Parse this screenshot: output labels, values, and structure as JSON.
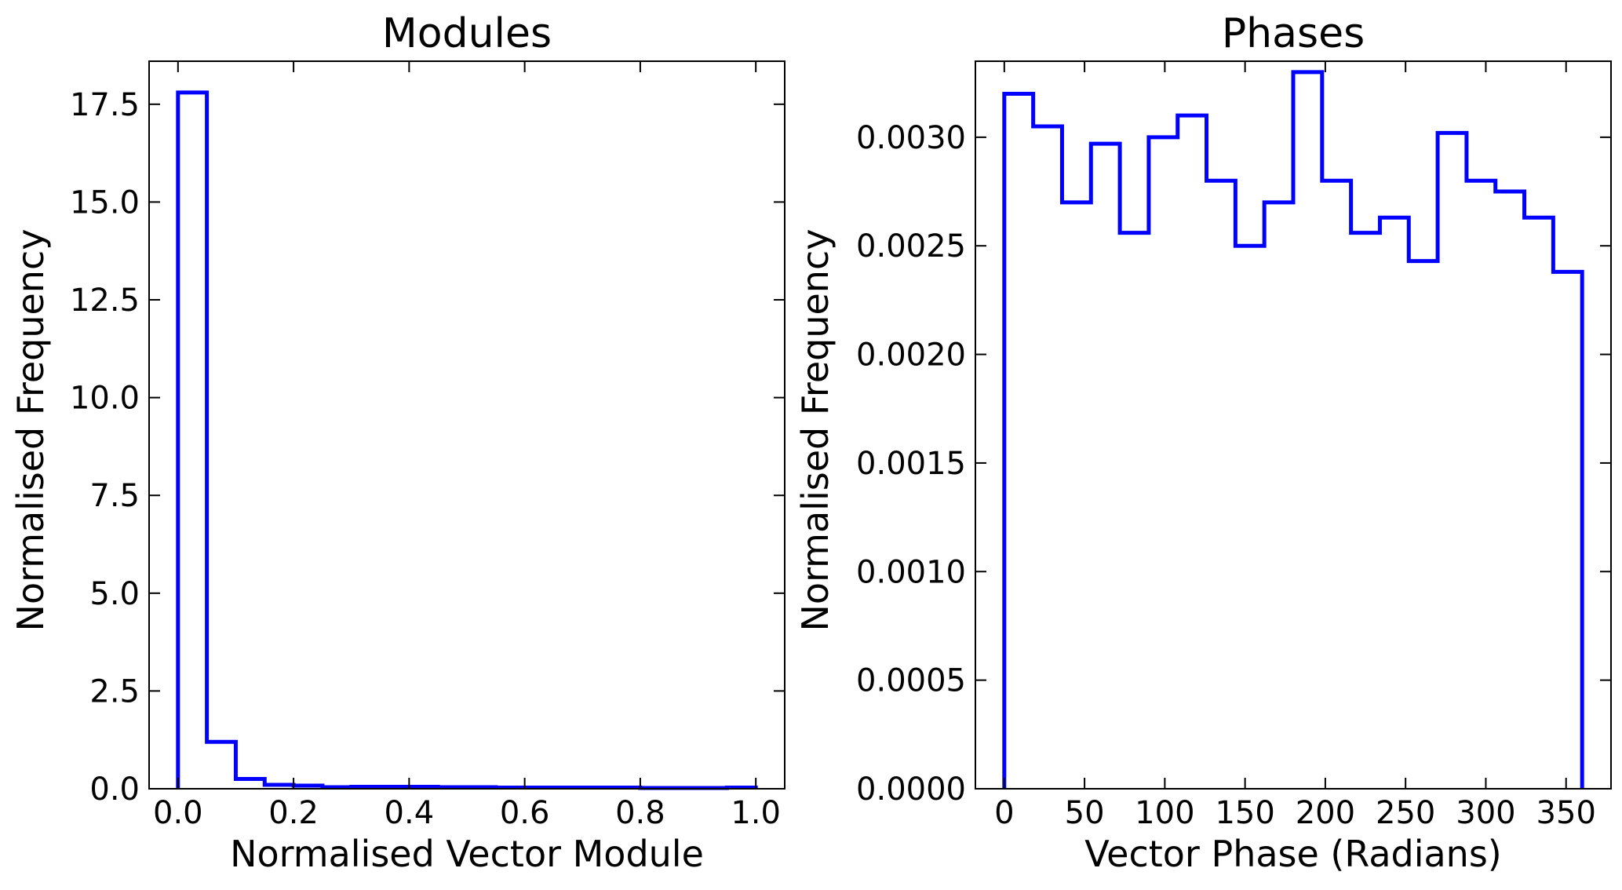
{
  "figure": {
    "background": "#ffffff"
  },
  "chart_data": [
    {
      "type": "histogram",
      "title": "Modules",
      "xlabel": "Normalised Vector Module",
      "ylabel": "Normalised Frequency",
      "xlim": [
        -0.05,
        1.05
      ],
      "ylim": [
        0,
        18.6
      ],
      "xticks": [
        0.0,
        0.2,
        0.4,
        0.6,
        0.8,
        1.0
      ],
      "xtick_labels": [
        "0.0",
        "0.2",
        "0.4",
        "0.6",
        "0.8",
        "1.0"
      ],
      "yticks": [
        0,
        2.5,
        5,
        7.5,
        10,
        12.5,
        15,
        17.5
      ],
      "ytick_labels": [
        "0.0",
        "2.5",
        "5.0",
        "7.5",
        "10.0",
        "12.5",
        "15.0",
        "17.5"
      ],
      "bin_edges": [
        0.0,
        0.05,
        0.1,
        0.15,
        0.2,
        0.25,
        0.3,
        0.35,
        0.4,
        0.45,
        0.5,
        0.55,
        0.6,
        0.65,
        0.7,
        0.75,
        0.8,
        0.85,
        0.9,
        0.95,
        1.0
      ],
      "values": [
        17.8,
        1.2,
        0.25,
        0.1,
        0.08,
        0.04,
        0.05,
        0.05,
        0.05,
        0.04,
        0.04,
        0.03,
        0.03,
        0.03,
        0.03,
        0.03,
        0.02,
        0.02,
        0.02,
        0.03
      ],
      "color": "#0000ff",
      "histtype": "step",
      "grid": false
    },
    {
      "type": "histogram",
      "title": "Phases",
      "xlabel": "Vector Phase (Radians)",
      "ylabel": "Normalised Frequency",
      "xlim": [
        -18,
        378
      ],
      "ylim": [
        0,
        0.00335
      ],
      "xticks": [
        0,
        50,
        100,
        150,
        200,
        250,
        300,
        350
      ],
      "xtick_labels": [
        "0",
        "50",
        "100",
        "150",
        "200",
        "250",
        "300",
        "350"
      ],
      "yticks": [
        0,
        0.0005,
        0.001,
        0.0015,
        0.002,
        0.0025,
        0.003
      ],
      "ytick_labels": [
        "0.0000",
        "0.0005",
        "0.0010",
        "0.0015",
        "0.0020",
        "0.0025",
        "0.0030"
      ],
      "bin_edges": [
        0,
        18,
        36,
        54,
        72,
        90,
        108,
        126,
        144,
        162,
        180,
        198,
        216,
        234,
        252,
        270,
        288,
        306,
        324,
        342,
        360
      ],
      "values": [
        0.0032,
        0.00305,
        0.0027,
        0.00297,
        0.00256,
        0.003,
        0.0031,
        0.0028,
        0.0025,
        0.0027,
        0.0033,
        0.0028,
        0.00256,
        0.00263,
        0.00243,
        0.00302,
        0.0028,
        0.00275,
        0.00263,
        0.00238
      ],
      "color": "#0000ff",
      "histtype": "step",
      "grid": false
    }
  ]
}
